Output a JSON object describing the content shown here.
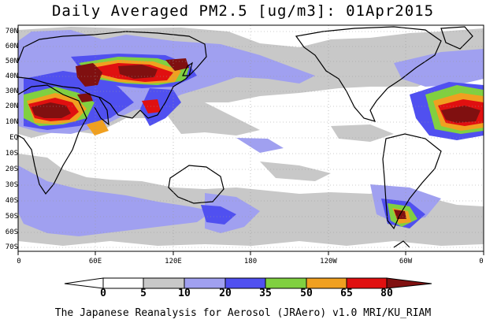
{
  "title": "Daily Averaged PM2.5 [ug/m3]: 01Apr2015",
  "credit": "The Japanese Reanalysis for Aerosol (JRAero) v1.0 MRI/KU_RIAM",
  "lat_labels": [
    "70N",
    "60N",
    "50N",
    "40N",
    "30N",
    "20N",
    "10N",
    "EQ",
    "10S",
    "20S",
    "30S",
    "40S",
    "50S",
    "60S",
    "70S"
  ],
  "lon_labels": [
    "0",
    "60E",
    "120E",
    "180",
    "120W",
    "60W",
    "0"
  ],
  "colorbar": {
    "labels": [
      "0",
      "5",
      "10",
      "20",
      "35",
      "50",
      "65",
      "80"
    ],
    "colors": [
      "#ffffff",
      "#c8c8c8",
      "#a0a0f0",
      "#5050f0",
      "#80d040",
      "#f0a020",
      "#e01010",
      "#801010"
    ]
  },
  "pm_colors": {
    "c5": "#c8c8c8",
    "c10": "#a0a0f0",
    "c20": "#5050f0",
    "c35": "#80d040",
    "c50": "#f0a020",
    "c65": "#e01010",
    "c80": "#801010"
  }
}
